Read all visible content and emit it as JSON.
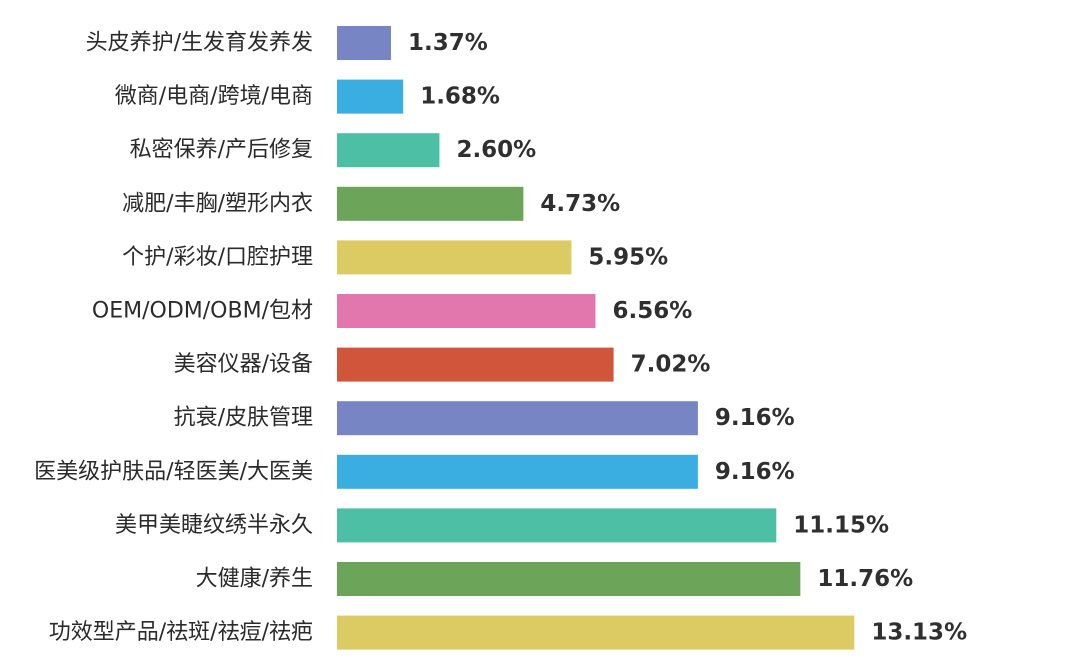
{
  "chart_data": {
    "type": "bar",
    "orientation": "horizontal",
    "categories": [
      "头皮养护/生发育发养发",
      "微商/电商/跨境/电商",
      "私密保养/产后修复",
      "减肥/丰胸/塑形内衣",
      "个护/彩妆/口腔护理",
      "OEM/ODM/OBM/包材",
      "美容仪器/设备",
      "抗衰/皮肤管理",
      "医美级护肤品/轻医美/大医美",
      "美甲美睫纹绣半永久",
      "大健康/养生",
      "功效型产品/祛斑/祛痘/祛疤"
    ],
    "values": [
      1.37,
      1.68,
      2.6,
      4.73,
      5.95,
      6.56,
      7.02,
      9.16,
      9.16,
      11.15,
      11.76,
      13.13
    ],
    "value_labels": [
      "1.37%",
      "1.68%",
      "2.60%",
      "4.73%",
      "5.95%",
      "6.56%",
      "7.02%",
      "9.16%",
      "9.16%",
      "11.15%",
      "11.76%",
      "13.13%"
    ],
    "colors": [
      "#7785c4",
      "#3aaee0",
      "#4dbfa5",
      "#6ca55a",
      "#dcca62",
      "#e277ad",
      "#d0553a",
      "#7785c4",
      "#3aaee0",
      "#4dbfa5",
      "#6ca55a",
      "#dcca62"
    ],
    "title": "",
    "xlabel": "",
    "ylabel": "",
    "xlim": [
      0,
      13.13
    ],
    "grid": false,
    "legend": "none"
  }
}
